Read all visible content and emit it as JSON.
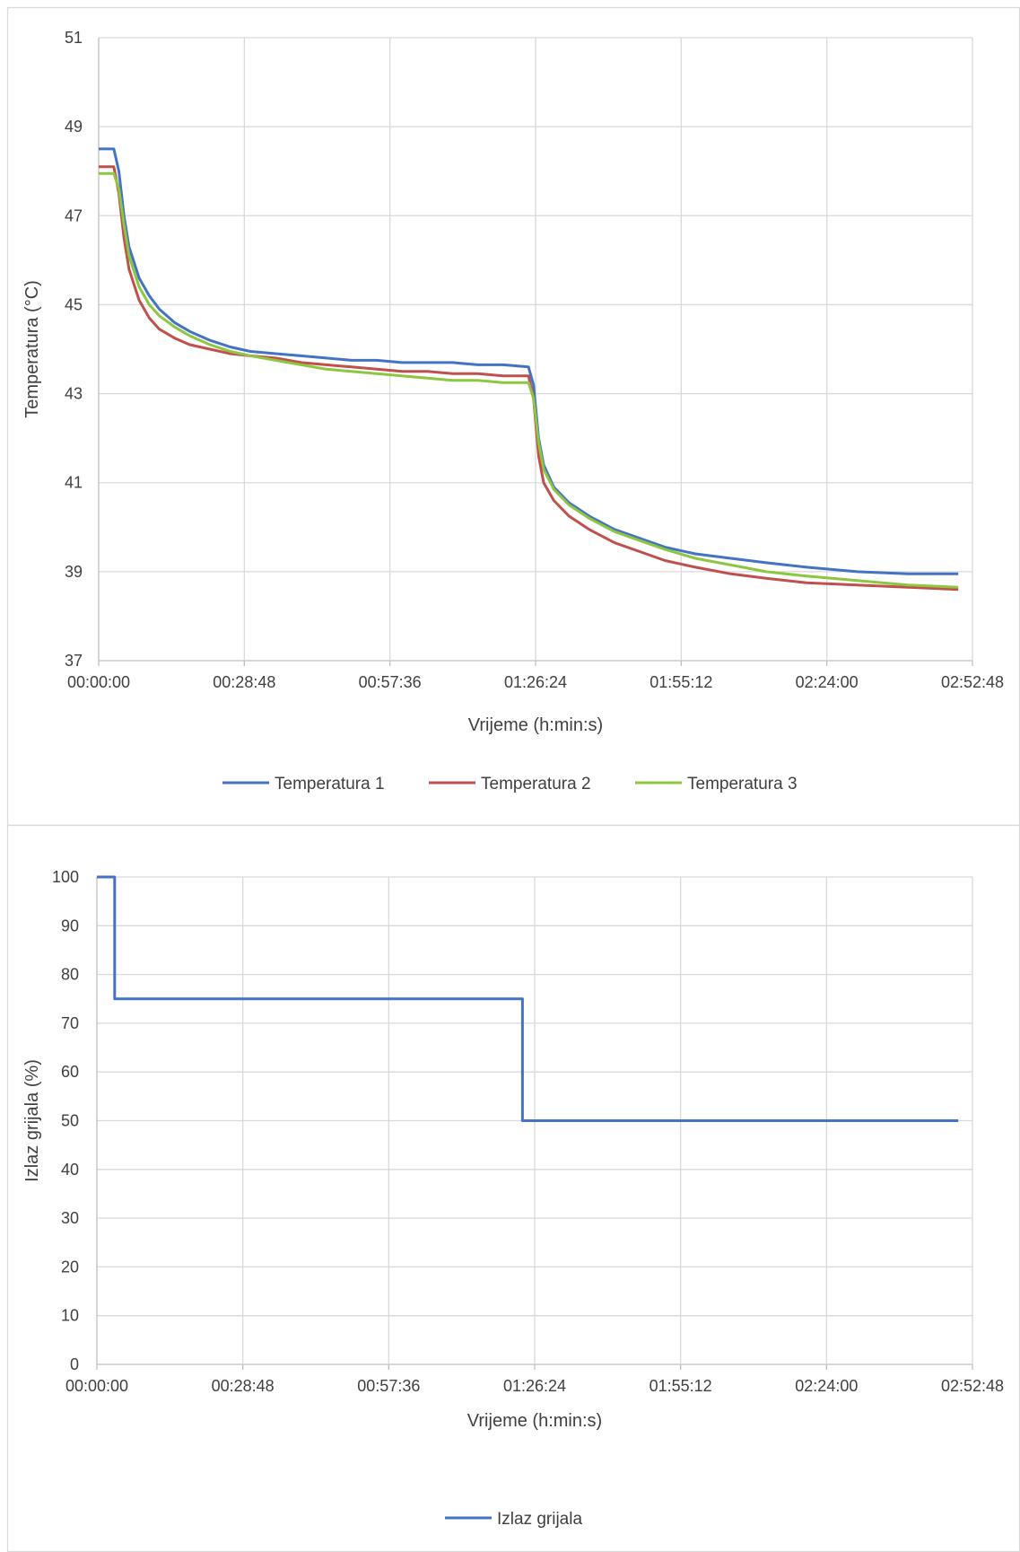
{
  "chart_data": [
    {
      "type": "line",
      "x_unit": "h:min:s",
      "x_ticks": [
        "00:00:00",
        "00:28:48",
        "00:57:36",
        "01:26:24",
        "01:55:12",
        "02:24:00",
        "02:52:48"
      ],
      "xlabel": "Vrijeme (h:min:s)",
      "ylabel": "Temperatura (°C)",
      "xlim": [
        "00:00:00",
        "02:52:48"
      ],
      "ylim": [
        37,
        51
      ],
      "y_ticks": [
        "37",
        "39",
        "41",
        "43",
        "45",
        "47",
        "49",
        "51"
      ],
      "grid": true,
      "legend_position": "bottom",
      "series": [
        {
          "name": "Temperatura 1",
          "color": "#4472c4",
          "points": [
            [
              "00:00:00",
              48.5
            ],
            [
              "00:03:00",
              48.5
            ],
            [
              "00:04:00",
              48.0
            ],
            [
              "00:05:00",
              47.0
            ],
            [
              "00:06:00",
              46.3
            ],
            [
              "00:08:00",
              45.6
            ],
            [
              "00:10:00",
              45.2
            ],
            [
              "00:12:00",
              44.9
            ],
            [
              "00:15:00",
              44.6
            ],
            [
              "00:18:00",
              44.4
            ],
            [
              "00:22:00",
              44.2
            ],
            [
              "00:26:00",
              44.05
            ],
            [
              "00:30:00",
              43.95
            ],
            [
              "00:35:00",
              43.9
            ],
            [
              "00:40:00",
              43.85
            ],
            [
              "00:45:00",
              43.8
            ],
            [
              "00:50:00",
              43.75
            ],
            [
              "00:55:00",
              43.75
            ],
            [
              "01:00:00",
              43.7
            ],
            [
              "01:05:00",
              43.7
            ],
            [
              "01:10:00",
              43.7
            ],
            [
              "01:15:00",
              43.65
            ],
            [
              "01:20:00",
              43.65
            ],
            [
              "01:25:00",
              43.6
            ],
            [
              "01:26:00",
              43.2
            ],
            [
              "01:27:00",
              42.0
            ],
            [
              "01:28:00",
              41.4
            ],
            [
              "01:30:00",
              40.9
            ],
            [
              "01:33:00",
              40.55
            ],
            [
              "01:37:00",
              40.25
            ],
            [
              "01:42:00",
              39.95
            ],
            [
              "01:47:00",
              39.75
            ],
            [
              "01:52:00",
              39.55
            ],
            [
              "01:58:00",
              39.4
            ],
            [
              "02:05:00",
              39.3
            ],
            [
              "02:12:00",
              39.2
            ],
            [
              "02:20:00",
              39.1
            ],
            [
              "02:30:00",
              39.0
            ],
            [
              "02:40:00",
              38.95
            ],
            [
              "02:50:00",
              38.95
            ]
          ]
        },
        {
          "name": "Temperatura 2",
          "color": "#c0504d",
          "points": [
            [
              "00:00:00",
              48.1
            ],
            [
              "00:03:00",
              48.1
            ],
            [
              "00:04:00",
              47.5
            ],
            [
              "00:05:00",
              46.5
            ],
            [
              "00:06:00",
              45.8
            ],
            [
              "00:08:00",
              45.1
            ],
            [
              "00:10:00",
              44.7
            ],
            [
              "00:12:00",
              44.45
            ],
            [
              "00:15:00",
              44.25
            ],
            [
              "00:18:00",
              44.1
            ],
            [
              "00:22:00",
              44.0
            ],
            [
              "00:26:00",
              43.9
            ],
            [
              "00:30:00",
              43.85
            ],
            [
              "00:35:00",
              43.8
            ],
            [
              "00:40:00",
              43.7
            ],
            [
              "00:45:00",
              43.65
            ],
            [
              "00:50:00",
              43.6
            ],
            [
              "00:55:00",
              43.55
            ],
            [
              "01:00:00",
              43.5
            ],
            [
              "01:05:00",
              43.5
            ],
            [
              "01:10:00",
              43.45
            ],
            [
              "01:15:00",
              43.45
            ],
            [
              "01:20:00",
              43.4
            ],
            [
              "01:25:00",
              43.4
            ],
            [
              "01:26:00",
              42.9
            ],
            [
              "01:27:00",
              41.6
            ],
            [
              "01:28:00",
              41.0
            ],
            [
              "01:30:00",
              40.6
            ],
            [
              "01:33:00",
              40.25
            ],
            [
              "01:37:00",
              39.95
            ],
            [
              "01:42:00",
              39.65
            ],
            [
              "01:47:00",
              39.45
            ],
            [
              "01:52:00",
              39.25
            ],
            [
              "01:58:00",
              39.1
            ],
            [
              "02:05:00",
              38.95
            ],
            [
              "02:12:00",
              38.85
            ],
            [
              "02:20:00",
              38.75
            ],
            [
              "02:30:00",
              38.7
            ],
            [
              "02:40:00",
              38.65
            ],
            [
              "02:50:00",
              38.6
            ]
          ]
        },
        {
          "name": "Temperatura 3",
          "color": "#8dc63f",
          "points": [
            [
              "00:00:00",
              47.95
            ],
            [
              "00:03:00",
              47.95
            ],
            [
              "00:04:00",
              47.6
            ],
            [
              "00:05:00",
              46.8
            ],
            [
              "00:06:00",
              46.1
            ],
            [
              "00:08:00",
              45.4
            ],
            [
              "00:10:00",
              45.0
            ],
            [
              "00:12:00",
              44.75
            ],
            [
              "00:15:00",
              44.5
            ],
            [
              "00:18:00",
              44.3
            ],
            [
              "00:22:00",
              44.1
            ],
            [
              "00:26:00",
              43.95
            ],
            [
              "00:30:00",
              43.85
            ],
            [
              "00:35:00",
              43.75
            ],
            [
              "00:40:00",
              43.65
            ],
            [
              "00:45:00",
              43.55
            ],
            [
              "00:50:00",
              43.5
            ],
            [
              "00:55:00",
              43.45
            ],
            [
              "01:00:00",
              43.4
            ],
            [
              "01:05:00",
              43.35
            ],
            [
              "01:10:00",
              43.3
            ],
            [
              "01:15:00",
              43.3
            ],
            [
              "01:20:00",
              43.25
            ],
            [
              "01:25:00",
              43.25
            ],
            [
              "01:26:00",
              42.9
            ],
            [
              "01:27:00",
              41.9
            ],
            [
              "01:28:00",
              41.3
            ],
            [
              "01:30:00",
              40.85
            ],
            [
              "01:33:00",
              40.5
            ],
            [
              "01:37:00",
              40.2
            ],
            [
              "01:42:00",
              39.9
            ],
            [
              "01:47:00",
              39.7
            ],
            [
              "01:52:00",
              39.5
            ],
            [
              "01:58:00",
              39.3
            ],
            [
              "02:05:00",
              39.15
            ],
            [
              "02:12:00",
              39.0
            ],
            [
              "02:20:00",
              38.9
            ],
            [
              "02:30:00",
              38.8
            ],
            [
              "02:40:00",
              38.7
            ],
            [
              "02:50:00",
              38.65
            ]
          ]
        }
      ]
    },
    {
      "type": "line",
      "x_unit": "h:min:s",
      "x_ticks": [
        "00:00:00",
        "00:28:48",
        "00:57:36",
        "01:26:24",
        "01:55:12",
        "02:24:00",
        "02:52:48"
      ],
      "xlabel": "Vrijeme (h:min:s)",
      "ylabel": "Izlaz grijala (%)",
      "xlim": [
        "00:00:00",
        "02:52:48"
      ],
      "ylim": [
        0,
        100
      ],
      "y_ticks": [
        "0",
        "10",
        "20",
        "30",
        "40",
        "50",
        "60",
        "70",
        "80",
        "90",
        "100"
      ],
      "grid": true,
      "legend_position": "bottom",
      "series": [
        {
          "name": "Izlaz grijala",
          "color": "#4472c4",
          "step": true,
          "points": [
            [
              "00:00:00",
              100
            ],
            [
              "00:03:30",
              100
            ],
            [
              "00:03:30",
              75
            ],
            [
              "01:24:00",
              75
            ],
            [
              "01:24:00",
              50
            ],
            [
              "02:50:00",
              50
            ]
          ]
        }
      ]
    }
  ]
}
